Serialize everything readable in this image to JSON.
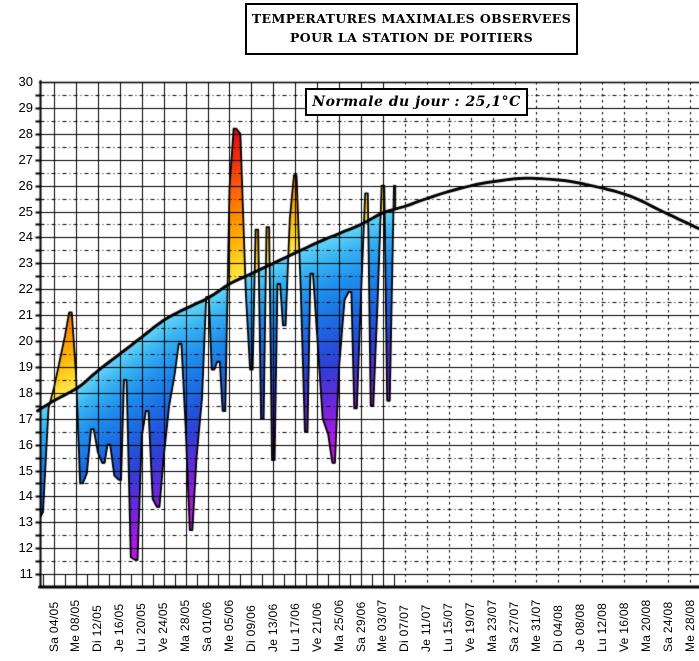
{
  "title_box": {
    "line1": "TEMPERATURES MAXIMALES OBSERVEES",
    "line2": "POUR LA STATION DE POITIERS"
  },
  "annotation_box": {
    "text": "Normale du jour : 25,1°C",
    "normale_du_jour_value": "25,1°C"
  },
  "y_axis": {
    "unit": "°C",
    "min": 10.5,
    "max": 30,
    "labels": [
      30,
      29,
      28,
      27,
      26,
      25,
      24,
      23,
      22,
      21,
      20,
      19,
      18,
      17,
      16,
      15,
      14,
      13,
      12,
      11
    ],
    "major_step": 1,
    "minor_step": 0.5
  },
  "x_axis": {
    "tick_labels": [
      "Sa 04/05",
      "Me 08/05",
      "Di 12/05",
      "Je 16/05",
      "Lu 20/05",
      "Ve 24/05",
      "Ma 28/05",
      "Sa 01/06",
      "Me 05/06",
      "Di 09/06",
      "Je 13/06",
      "Lu 17/06",
      "Ve 21/06",
      "Ma 25/06",
      "Sa 29/06",
      "Me 03/07",
      "Di 07/07",
      "Je 11/07",
      "Lu 15/07",
      "Ve 19/07",
      "Ma 23/07",
      "Sa 27/07",
      "Me 31/07",
      "Di 04/08",
      "Je 08/08",
      "Lu 12/08",
      "Ve 16/08",
      "Ma 20/08",
      "Sa 24/08",
      "Me 28/08"
    ],
    "tick_interval_days": 4,
    "minor_tick_days": 2,
    "first_day_offset": -3,
    "last_day_offset": 118
  },
  "chart_data": {
    "type": "line",
    "title": "TEMPERATURES MAXIMALES OBSERVEES POUR LA STATION DE POITIERS",
    "xlabel": "",
    "ylabel": "",
    "ylim": [
      10.5,
      30
    ],
    "grid": true,
    "legend_position": "none",
    "annotations": [
      "Normale du jour : 25,1°C"
    ],
    "observed_end_day": 62,
    "series": [
      {
        "name": "Temperature maximale observee",
        "dates": [
          "01/05",
          "02/05",
          "03/05",
          "04/05",
          "05/05",
          "06/05",
          "07/05",
          "08/05",
          "09/05",
          "10/05",
          "11/05",
          "12/05",
          "13/05",
          "14/05",
          "15/05",
          "16/05",
          "17/05",
          "18/05",
          "19/05",
          "20/05",
          "21/05",
          "22/05",
          "23/05",
          "24/05",
          "25/05",
          "26/05",
          "27/05",
          "28/05",
          "29/05",
          "30/05",
          "31/05",
          "01/06",
          "02/06",
          "03/06",
          "04/06",
          "05/06",
          "06/06",
          "07/06",
          "08/06",
          "09/06",
          "10/06",
          "11/06",
          "12/06",
          "13/06",
          "14/06",
          "15/06",
          "16/06",
          "17/06",
          "18/06",
          "19/06",
          "20/06",
          "21/06",
          "22/06",
          "23/06",
          "24/06",
          "25/06",
          "26/06",
          "27/06",
          "28/06",
          "29/06",
          "30/06",
          "01/07",
          "02/07",
          "03/07",
          "04/07",
          "05/07"
        ],
        "values": [
          13.0,
          13.4,
          17.4,
          18.2,
          19.2,
          20.2,
          21.1,
          18.8,
          14.5,
          14.9,
          16.6,
          15.7,
          15.3,
          16.0,
          14.8,
          14.65,
          18.5,
          11.65,
          11.55,
          16.3,
          17.3,
          13.9,
          13.6,
          15.5,
          17.5,
          18.7,
          19.9,
          16.7,
          12.7,
          15.5,
          17.8,
          21.7,
          18.9,
          19.2,
          17.3,
          25.9,
          28.2,
          28.0,
          21.8,
          18.9,
          24.3,
          17.0,
          24.4,
          15.4,
          22.2,
          20.6,
          24.7,
          26.4,
          22.0,
          16.5,
          22.6,
          20.2,
          17.0,
          16.4,
          15.3,
          19.0,
          21.6,
          21.9,
          17.4,
          21.8,
          25.7,
          17.5,
          21.4,
          26.0,
          17.7,
          26.0
        ]
      },
      {
        "name": "Normale du jour",
        "dates": [
          "01/05",
          "02/05",
          "03/05",
          "04/05",
          "05/05",
          "06/05",
          "07/05",
          "08/05",
          "09/05",
          "10/05",
          "11/05",
          "12/05",
          "13/05",
          "14/05",
          "15/05",
          "16/05",
          "17/05",
          "18/05",
          "19/05",
          "20/05",
          "21/05",
          "22/05",
          "23/05",
          "24/05",
          "25/05",
          "26/05",
          "27/05",
          "28/05",
          "29/05",
          "30/05",
          "31/05",
          "01/06",
          "02/06",
          "03/06",
          "04/06",
          "05/06",
          "06/06",
          "07/06",
          "08/06",
          "09/06",
          "10/06",
          "11/06",
          "12/06",
          "13/06",
          "14/06",
          "15/06",
          "16/06",
          "17/06",
          "18/06",
          "19/06",
          "20/06",
          "21/06",
          "22/06",
          "23/06",
          "24/06",
          "25/06",
          "26/06",
          "27/06",
          "28/06",
          "29/06",
          "30/06",
          "01/07",
          "02/07",
          "03/07",
          "04/07",
          "05/07",
          "06/07",
          "07/07",
          "08/07",
          "09/07",
          "10/07",
          "11/07",
          "12/07",
          "13/07",
          "14/07",
          "15/07",
          "16/07",
          "17/07",
          "18/07",
          "19/07",
          "20/07",
          "21/07",
          "22/07",
          "23/07",
          "24/07",
          "25/07",
          "26/07",
          "27/07",
          "28/07",
          "29/07",
          "30/07",
          "31/07",
          "01/08",
          "02/08",
          "03/08",
          "04/08",
          "05/08",
          "06/08",
          "07/08",
          "08/08",
          "09/08",
          "10/08",
          "11/08",
          "12/08",
          "13/08",
          "14/08",
          "15/08",
          "16/08",
          "17/08",
          "18/08",
          "19/08",
          "20/08",
          "21/08",
          "22/08",
          "23/08",
          "24/08",
          "25/08",
          "26/08",
          "27/08",
          "28/08",
          "29/08",
          "30/08"
        ],
        "values": [
          17.3,
          17.44,
          17.57,
          17.7,
          17.81,
          17.92,
          18.03,
          18.15,
          18.3,
          18.48,
          18.67,
          18.85,
          19.02,
          19.18,
          19.34,
          19.5,
          19.66,
          19.82,
          19.99,
          20.15,
          20.32,
          20.49,
          20.65,
          20.8,
          20.93,
          21.04,
          21.15,
          21.25,
          21.35,
          21.45,
          21.54,
          21.65,
          21.78,
          21.92,
          22.07,
          22.2,
          22.31,
          22.41,
          22.5,
          22.6,
          22.7,
          22.8,
          22.9,
          23.0,
          23.1,
          23.2,
          23.3,
          23.4,
          23.5,
          23.6,
          23.7,
          23.8,
          23.89,
          23.98,
          24.06,
          24.15,
          24.24,
          24.32,
          24.41,
          24.5,
          24.61,
          24.73,
          24.85,
          24.95,
          25.02,
          25.08,
          25.14,
          25.2,
          25.27,
          25.35,
          25.43,
          25.5,
          25.57,
          25.64,
          25.71,
          25.77,
          25.83,
          25.89,
          25.94,
          25.99,
          26.04,
          26.08,
          26.12,
          26.15,
          26.18,
          26.21,
          26.24,
          26.26,
          26.27,
          26.28,
          26.28,
          26.27,
          26.26,
          26.25,
          26.24,
          26.22,
          26.2,
          26.17,
          26.13,
          26.09,
          26.04,
          26.0,
          25.95,
          25.91,
          25.85,
          25.8,
          25.74,
          25.67,
          25.6,
          25.52,
          25.42,
          25.32,
          25.21,
          25.1,
          25.0,
          24.9,
          24.8,
          24.7,
          24.6,
          24.5,
          24.4,
          24.3
        ]
      }
    ],
    "fill_colors": {
      "below_normal_stops": [
        [
          0,
          "#62D4F8"
        ],
        [
          0.8,
          "#38B4F2"
        ],
        [
          2,
          "#1E8CEC"
        ],
        [
          3,
          "#1C72E4"
        ],
        [
          4,
          "#2256DC"
        ],
        [
          5,
          "#323FD6"
        ],
        [
          6,
          "#5A2ED8"
        ],
        [
          7,
          "#8820E0"
        ],
        [
          8,
          "#B518E9"
        ],
        [
          8.7,
          "#CC12EE"
        ]
      ],
      "above_normal_stops": [
        [
          0,
          "#FFE95C"
        ],
        [
          0.6,
          "#FFD728"
        ],
        [
          1.5,
          "#FFB40A"
        ],
        [
          2.5,
          "#FF8E00"
        ],
        [
          3.5,
          "#FB6406"
        ],
        [
          4.5,
          "#F0380C"
        ],
        [
          5.5,
          "#E01710"
        ],
        [
          6.2,
          "#D21010"
        ]
      ],
      "line_color": "#000000",
      "normal_curve_color": "#000000"
    }
  }
}
